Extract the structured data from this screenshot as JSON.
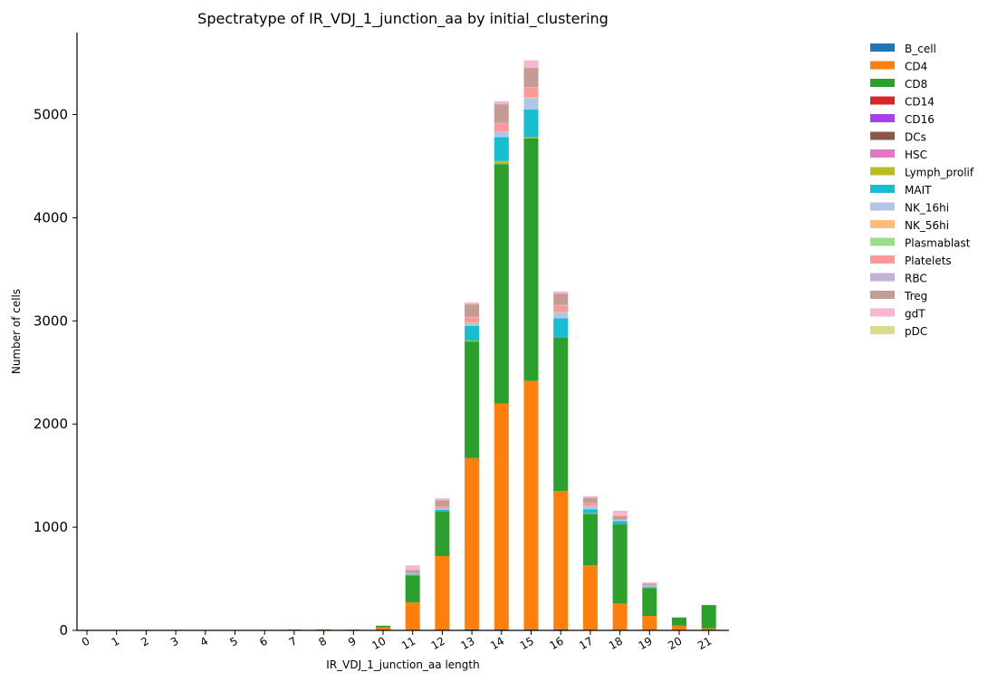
{
  "chart_data": {
    "type": "bar",
    "stacked": true,
    "title": "Spectratype of IR_VDJ_1_junction_aa by initial_clustering",
    "xlabel": "IR_VDJ_1_junction_aa length",
    "ylabel": "Number of cells",
    "ylim": [
      0,
      5800
    ],
    "yticks": [
      0,
      1000,
      2000,
      3000,
      4000,
      5000
    ],
    "categories": [
      "0",
      "1",
      "2",
      "3",
      "4",
      "5",
      "6",
      "7",
      "8",
      "9",
      "10",
      "11",
      "12",
      "13",
      "14",
      "15",
      "16",
      "17",
      "18",
      "19",
      "20",
      "21"
    ],
    "legend_position": "right",
    "grid": false,
    "series": [
      {
        "name": "B_cell",
        "color": "#1f77b4",
        "values": [
          0,
          0,
          0,
          0,
          0,
          0,
          0,
          0,
          0,
          0,
          0,
          0,
          0,
          10,
          10,
          10,
          10,
          0,
          0,
          0,
          0,
          0
        ]
      },
      {
        "name": "CD4",
        "color": "#ff7f0e",
        "values": [
          0,
          0,
          0,
          0,
          0,
          0,
          0,
          8,
          10,
          8,
          30,
          270,
          720,
          1660,
          2190,
          2410,
          1340,
          630,
          260,
          140,
          45,
          20
        ]
      },
      {
        "name": "CD8",
        "color": "#2ca02c",
        "values": [
          0,
          0,
          0,
          0,
          0,
          0,
          0,
          0,
          0,
          0,
          15,
          260,
          430,
          1130,
          2320,
          2350,
          1490,
          500,
          770,
          270,
          80,
          225
        ]
      },
      {
        "name": "CD14",
        "color": "#d62728",
        "values": [
          0,
          0,
          0,
          0,
          0,
          0,
          0,
          0,
          0,
          0,
          0,
          0,
          0,
          0,
          0,
          0,
          0,
          0,
          0,
          0,
          0,
          0
        ]
      },
      {
        "name": "CD16",
        "color": "#a53ff0",
        "values": [
          0,
          0,
          0,
          0,
          0,
          0,
          0,
          0,
          0,
          0,
          0,
          0,
          0,
          0,
          0,
          0,
          0,
          0,
          0,
          0,
          0,
          0
        ]
      },
      {
        "name": "DCs",
        "color": "#8c564b",
        "values": [
          0,
          0,
          0,
          0,
          0,
          0,
          0,
          0,
          0,
          0,
          0,
          0,
          0,
          0,
          0,
          0,
          0,
          0,
          0,
          0,
          0,
          0
        ]
      },
      {
        "name": "HSC",
        "color": "#e377c2",
        "values": [
          0,
          0,
          0,
          0,
          0,
          0,
          0,
          0,
          0,
          0,
          0,
          0,
          0,
          0,
          0,
          0,
          0,
          0,
          0,
          0,
          0,
          0
        ]
      },
      {
        "name": "Lymph_prolif",
        "color": "#bcbd22",
        "values": [
          0,
          0,
          0,
          0,
          0,
          0,
          0,
          0,
          0,
          0,
          0,
          0,
          0,
          10,
          30,
          10,
          5,
          5,
          0,
          0,
          0,
          0
        ]
      },
      {
        "name": "MAIT",
        "color": "#17becf",
        "values": [
          0,
          0,
          0,
          0,
          0,
          0,
          0,
          0,
          0,
          0,
          0,
          10,
          20,
          140,
          230,
          270,
          180,
          40,
          30,
          10,
          0,
          0
        ]
      },
      {
        "name": "NK_16hi",
        "color": "#aec7e8",
        "values": [
          0,
          0,
          0,
          0,
          0,
          0,
          0,
          0,
          0,
          0,
          0,
          5,
          10,
          30,
          50,
          110,
          60,
          30,
          10,
          10,
          0,
          0
        ]
      },
      {
        "name": "NK_56hi",
        "color": "#ffbb78",
        "values": [
          0,
          0,
          0,
          0,
          0,
          0,
          0,
          0,
          0,
          0,
          0,
          0,
          0,
          5,
          5,
          10,
          5,
          0,
          0,
          0,
          0,
          0
        ]
      },
      {
        "name": "Plasmablast",
        "color": "#98df8a",
        "values": [
          0,
          0,
          0,
          0,
          0,
          0,
          0,
          0,
          0,
          0,
          0,
          0,
          0,
          0,
          0,
          0,
          0,
          0,
          0,
          0,
          0,
          0
        ]
      },
      {
        "name": "Platelets",
        "color": "#ff9896",
        "values": [
          0,
          0,
          0,
          0,
          0,
          0,
          0,
          0,
          0,
          0,
          0,
          10,
          20,
          50,
          80,
          90,
          60,
          30,
          10,
          10,
          0,
          0
        ]
      },
      {
        "name": "RBC",
        "color": "#c5b0d5",
        "values": [
          0,
          0,
          0,
          0,
          0,
          0,
          0,
          0,
          0,
          0,
          0,
          0,
          0,
          5,
          5,
          5,
          5,
          0,
          0,
          0,
          0,
          0
        ]
      },
      {
        "name": "Treg",
        "color": "#c49c94",
        "values": [
          0,
          0,
          0,
          0,
          0,
          0,
          0,
          0,
          0,
          0,
          0,
          30,
          60,
          120,
          180,
          190,
          110,
          50,
          30,
          15,
          0,
          0
        ]
      },
      {
        "name": "gdT",
        "color": "#f7b6d2",
        "values": [
          0,
          0,
          0,
          0,
          0,
          0,
          0,
          0,
          0,
          0,
          0,
          45,
          20,
          20,
          30,
          70,
          20,
          15,
          50,
          10,
          0,
          0
        ]
      },
      {
        "name": "pDC",
        "color": "#dbdb8d",
        "values": [
          0,
          0,
          0,
          0,
          0,
          0,
          0,
          0,
          0,
          0,
          0,
          0,
          0,
          0,
          0,
          0,
          0,
          0,
          0,
          0,
          0,
          0
        ]
      }
    ]
  }
}
